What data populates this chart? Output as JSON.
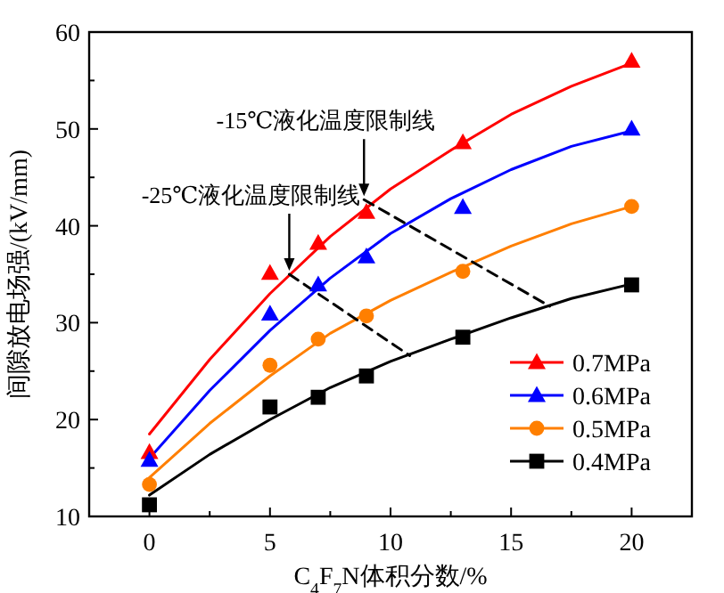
{
  "chart_data": {
    "type": "scatter",
    "xlabel": "C$_{4}$F$_{7}$N体积分数/%",
    "ylabel": "间隙放电场强/(kV/mm)",
    "xlim": [
      -2.5,
      22.5
    ],
    "ylim": [
      10,
      60
    ],
    "xticks": [
      0,
      5,
      10,
      15,
      20
    ],
    "yticks": [
      10,
      20,
      30,
      40,
      50,
      60
    ],
    "legend": "bottom right",
    "grid": false,
    "series": [
      {
        "name": "0.7MPa",
        "marker": "triangle",
        "color": "#ff0000",
        "x": [
          0,
          5,
          7,
          9,
          13,
          20
        ],
        "values": [
          16.6,
          35.1,
          38.2,
          41.4,
          48.6,
          57.0
        ]
      },
      {
        "name": "0.6MPa",
        "marker": "triangle",
        "color": "#0000ff",
        "x": [
          0,
          5,
          7,
          9,
          13,
          20
        ],
        "values": [
          15.8,
          30.9,
          33.9,
          36.8,
          41.9,
          50.0
        ]
      },
      {
        "name": "0.5MPa",
        "marker": "circle",
        "color": "#ff7f00",
        "x": [
          0,
          5,
          7,
          9,
          13,
          20
        ],
        "values": [
          13.3,
          25.6,
          28.3,
          30.7,
          35.3,
          42.0
        ]
      },
      {
        "name": "0.4MPa",
        "marker": "square",
        "color": "#000000",
        "x": [
          0,
          5,
          7,
          9,
          13,
          20
        ],
        "values": [
          11.2,
          21.3,
          22.3,
          24.5,
          28.5,
          33.9
        ]
      },
      {
        "type": "line",
        "color": "#ff0000",
        "x": [
          0,
          2.5,
          5,
          7.5,
          10,
          12.5,
          15,
          17.5,
          20
        ],
        "values": [
          18.5,
          26.2,
          33.0,
          38.9,
          43.8,
          47.8,
          51.5,
          54.4,
          56.8
        ]
      },
      {
        "type": "line",
        "color": "#0000ff",
        "x": [
          0,
          2.5,
          5,
          7.5,
          10,
          12.5,
          15,
          17.5,
          20
        ],
        "values": [
          16.0,
          23.0,
          29.2,
          34.6,
          39.2,
          42.8,
          45.8,
          48.2,
          49.8
        ]
      },
      {
        "type": "line",
        "color": "#ff7f00",
        "x": [
          0,
          2.5,
          5,
          7.5,
          10,
          12.5,
          15,
          17.5,
          20
        ],
        "values": [
          14.0,
          19.6,
          24.5,
          28.9,
          32.3,
          35.2,
          37.9,
          40.2,
          42.0
        ]
      },
      {
        "type": "line",
        "color": "#000000",
        "x": [
          0,
          2.5,
          5,
          7.5,
          10,
          12.5,
          15,
          17.5,
          20
        ],
        "values": [
          12.2,
          16.4,
          20.0,
          23.3,
          26.0,
          28.3,
          30.5,
          32.5,
          34.0
        ]
      },
      {
        "type": "line",
        "line_style": "dashed",
        "color": "#000000",
        "x": [
          8.9,
          16.6
        ],
        "values": [
          42.7,
          31.7
        ]
      },
      {
        "type": "line",
        "line_style": "dashed",
        "color": "#000000",
        "x": [
          5.8,
          10.8
        ],
        "values": [
          35.0,
          26.6
        ]
      }
    ],
    "annotations": [
      {
        "text": "-15℃液化温度限制线",
        "x": 8.9,
        "y": 42.7
      },
      {
        "text": "-25℃液化温度限制线",
        "x": 5.8,
        "y": 35.0
      }
    ]
  }
}
